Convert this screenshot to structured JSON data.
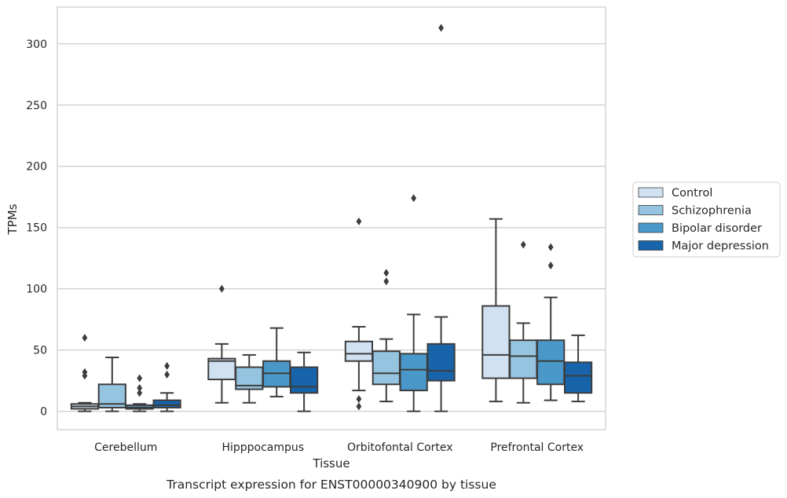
{
  "chart_data": {
    "type": "box",
    "caption": "Transcript expression for ENST00000340900 by tissue",
    "xlabel": "Tissue",
    "ylabel": "TPMs",
    "ylim": [
      -15,
      330
    ],
    "yticks": [
      0,
      50,
      100,
      150,
      200,
      250,
      300
    ],
    "categories": [
      "Cerebellum",
      "Hipppocampus",
      "Orbitofontal Cortex",
      "Prefrontal Cortex"
    ],
    "grid": "horizontal",
    "legend_position": "right-center",
    "series": [
      {
        "name": "Control",
        "color": "#d0e1f2",
        "boxes": [
          {
            "whislo": 0,
            "q1": 2,
            "med": 4,
            "q3": 6,
            "whishi": 7,
            "fliers": [
              60,
              32,
              29
            ]
          },
          {
            "whislo": 7,
            "q1": 26,
            "med": 41,
            "q3": 43,
            "whishi": 55,
            "fliers": [
              100
            ]
          },
          {
            "whislo": 17,
            "q1": 41,
            "med": 47,
            "q3": 57,
            "whishi": 69,
            "fliers": [
              155,
              10,
              4
            ]
          },
          {
            "whislo": 8,
            "q1": 27,
            "med": 46,
            "q3": 86,
            "whishi": 157,
            "fliers": []
          }
        ]
      },
      {
        "name": "Schizophrenia",
        "color": "#94c4df",
        "boxes": [
          {
            "whislo": 0,
            "q1": 3,
            "med": 6,
            "q3": 22,
            "whishi": 44,
            "fliers": []
          },
          {
            "whislo": 7,
            "q1": 18,
            "med": 21,
            "q3": 36,
            "whishi": 46,
            "fliers": []
          },
          {
            "whislo": 8,
            "q1": 22,
            "med": 31,
            "q3": 49,
            "whishi": 59,
            "fliers": [
              113,
              106
            ]
          },
          {
            "whislo": 7,
            "q1": 27,
            "med": 45,
            "q3": 58,
            "whishi": 72,
            "fliers": [
              136
            ]
          }
        ]
      },
      {
        "name": "Bipolar disorder",
        "color": "#4a98c9",
        "boxes": [
          {
            "whislo": 0,
            "q1": 2,
            "med": 3,
            "q3": 5,
            "whishi": 6,
            "fliers": [
              27,
              19,
              15
            ]
          },
          {
            "whislo": 12,
            "q1": 20,
            "med": 31,
            "q3": 41,
            "whishi": 68,
            "fliers": []
          },
          {
            "whislo": 0,
            "q1": 17,
            "med": 34,
            "q3": 47,
            "whishi": 79,
            "fliers": [
              174
            ]
          },
          {
            "whislo": 9,
            "q1": 22,
            "med": 41,
            "q3": 58,
            "whishi": 93,
            "fliers": [
              134,
              119
            ]
          }
        ]
      },
      {
        "name": "Major depression",
        "color": "#1764ab",
        "boxes": [
          {
            "whislo": 0,
            "q1": 3,
            "med": 5,
            "q3": 9,
            "whishi": 15,
            "fliers": [
              37,
              30
            ]
          },
          {
            "whislo": 0,
            "q1": 15,
            "med": 20,
            "q3": 36,
            "whishi": 48,
            "fliers": []
          },
          {
            "whislo": 0,
            "q1": 25,
            "med": 33,
            "q3": 55,
            "whishi": 77,
            "fliers": [
              313
            ]
          },
          {
            "whislo": 8,
            "q1": 15,
            "med": 29,
            "q3": 40,
            "whishi": 62,
            "fliers": []
          }
        ]
      }
    ]
  }
}
